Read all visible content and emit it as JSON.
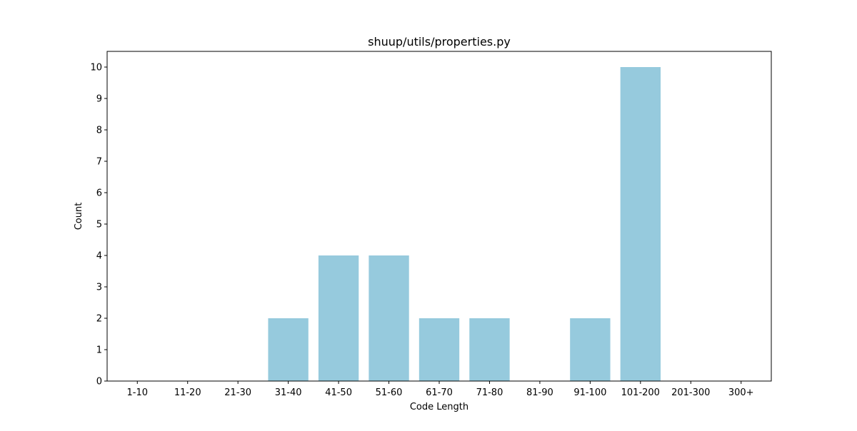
{
  "chart_data": {
    "type": "bar",
    "title": "shuup/utils/properties.py",
    "xlabel": "Code Length",
    "ylabel": "Count",
    "categories": [
      "1-10",
      "11-20",
      "21-30",
      "31-40",
      "41-50",
      "51-60",
      "61-70",
      "71-80",
      "81-90",
      "91-100",
      "101-200",
      "201-300",
      "300+"
    ],
    "values": [
      0,
      0,
      0,
      2,
      4,
      4,
      2,
      2,
      0,
      2,
      10,
      0,
      0
    ],
    "yticks": [
      0,
      1,
      2,
      3,
      4,
      5,
      6,
      7,
      8,
      9,
      10
    ],
    "ylim": [
      0,
      10.5
    ],
    "bar_color": "#96cadd",
    "grid": false,
    "legend": "none"
  }
}
